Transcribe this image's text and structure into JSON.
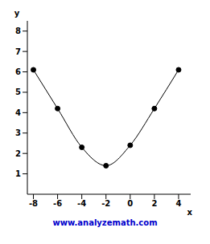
{
  "chart_data": {
    "type": "line",
    "x_label": "x",
    "y_label": "y",
    "footer": "www.analyzemath.com",
    "x": [
      -8,
      -6,
      -4,
      -2,
      0,
      2,
      4
    ],
    "values": [
      6.1,
      4.2,
      2.3,
      1.4,
      2.4,
      4.2,
      6.1
    ],
    "color": "#000000",
    "marker": "circle",
    "xlim": [
      -8.5,
      5
    ],
    "xticks": [
      -8,
      -6,
      -4,
      -2,
      0,
      2,
      4
    ],
    "ylim": [
      0,
      8.5
    ],
    "yticks": [
      1,
      2,
      3,
      4,
      5,
      6,
      7,
      8
    ],
    "grid": false
  }
}
